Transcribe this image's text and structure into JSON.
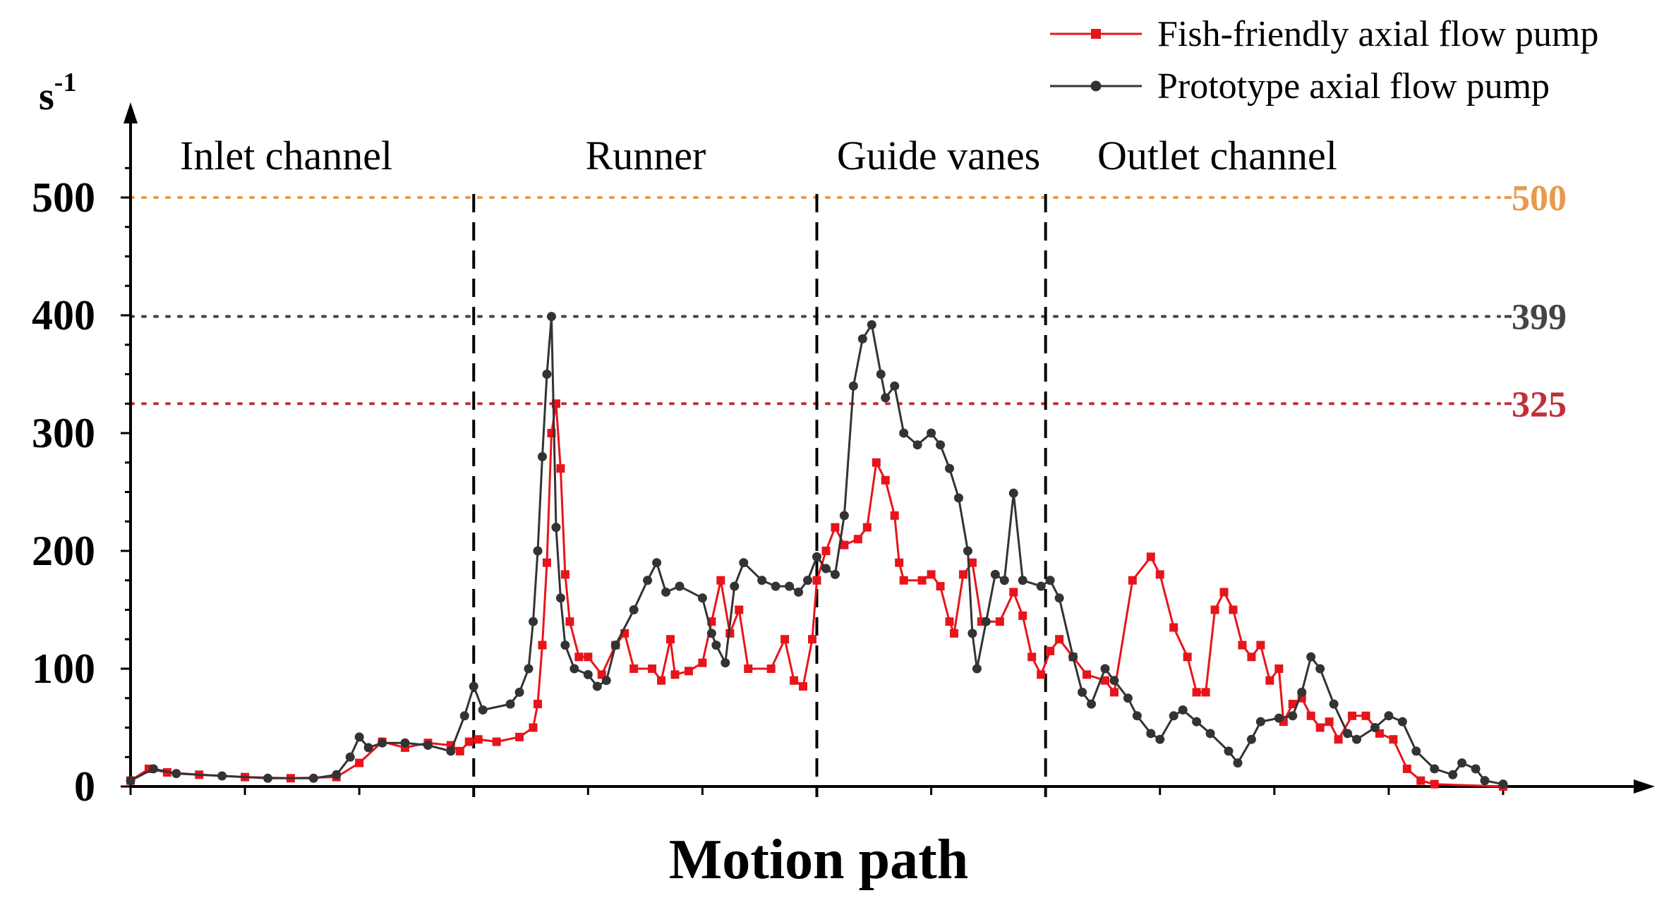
{
  "chart_data": {
    "type": "line",
    "xlabel": "Motion path",
    "ylabel_unit": "s",
    "ylabel_unit_sup": "-1",
    "ylim": [
      0,
      550
    ],
    "xlim": [
      0,
      300
    ],
    "y_ticks": [
      0,
      100,
      200,
      300,
      400,
      500
    ],
    "grid": false,
    "legend_position": "top-right",
    "regions": [
      {
        "label": "Inlet channel",
        "x_start": 0,
        "x_end": 75
      },
      {
        "label": "Runner",
        "x_start": 75,
        "x_end": 150
      },
      {
        "label": "Guide vanes",
        "x_start": 150,
        "x_end": 200
      },
      {
        "label": "Outlet channel",
        "x_start": 200,
        "x_end": 300
      }
    ],
    "reference_lines": [
      {
        "value": 500,
        "label": "500",
        "color": "#e89a4a"
      },
      {
        "value": 399,
        "label": "399",
        "color": "#444444"
      },
      {
        "value": 325,
        "label": "325",
        "color": "#c0303a"
      }
    ],
    "series": [
      {
        "name": "Fish-friendly axial flow pump",
        "color": "#e8141b",
        "points": [
          [
            0,
            5
          ],
          [
            4,
            15
          ],
          [
            8,
            12
          ],
          [
            15,
            10
          ],
          [
            25,
            8
          ],
          [
            35,
            7
          ],
          [
            45,
            8
          ],
          [
            50,
            20
          ],
          [
            55,
            38
          ],
          [
            60,
            33
          ],
          [
            65,
            37
          ],
          [
            70,
            35
          ],
          [
            72,
            30
          ],
          [
            74,
            38
          ],
          [
            76,
            40
          ],
          [
            80,
            38
          ],
          [
            85,
            42
          ],
          [
            88,
            50
          ],
          [
            89,
            70
          ],
          [
            90,
            120
          ],
          [
            91,
            190
          ],
          [
            92,
            300
          ],
          [
            93,
            325
          ],
          [
            94,
            270
          ],
          [
            95,
            180
          ],
          [
            96,
            140
          ],
          [
            98,
            110
          ],
          [
            100,
            110
          ],
          [
            103,
            95
          ],
          [
            106,
            120
          ],
          [
            108,
            130
          ],
          [
            110,
            100
          ],
          [
            114,
            100
          ],
          [
            116,
            90
          ],
          [
            118,
            125
          ],
          [
            119,
            95
          ],
          [
            122,
            98
          ],
          [
            125,
            105
          ],
          [
            127,
            140
          ],
          [
            129,
            175
          ],
          [
            131,
            130
          ],
          [
            133,
            150
          ],
          [
            135,
            100
          ],
          [
            140,
            100
          ],
          [
            143,
            125
          ],
          [
            145,
            90
          ],
          [
            147,
            85
          ],
          [
            149,
            125
          ],
          [
            150,
            175
          ],
          [
            152,
            200
          ],
          [
            154,
            220
          ],
          [
            156,
            205
          ],
          [
            159,
            210
          ],
          [
            161,
            220
          ],
          [
            163,
            275
          ],
          [
            165,
            260
          ],
          [
            167,
            230
          ],
          [
            168,
            190
          ],
          [
            169,
            175
          ],
          [
            173,
            175
          ],
          [
            175,
            180
          ],
          [
            177,
            170
          ],
          [
            179,
            140
          ],
          [
            180,
            130
          ],
          [
            182,
            180
          ],
          [
            184,
            190
          ],
          [
            186,
            140
          ],
          [
            190,
            140
          ],
          [
            193,
            165
          ],
          [
            195,
            145
          ],
          [
            197,
            110
          ],
          [
            199,
            95
          ],
          [
            201,
            115
          ],
          [
            203,
            125
          ],
          [
            206,
            110
          ],
          [
            209,
            95
          ],
          [
            213,
            90
          ],
          [
            215,
            80
          ],
          [
            219,
            175
          ],
          [
            223,
            195
          ],
          [
            225,
            180
          ],
          [
            228,
            135
          ],
          [
            231,
            110
          ],
          [
            233,
            80
          ],
          [
            235,
            80
          ],
          [
            237,
            150
          ],
          [
            239,
            165
          ],
          [
            241,
            150
          ],
          [
            243,
            120
          ],
          [
            245,
            110
          ],
          [
            247,
            120
          ],
          [
            249,
            90
          ],
          [
            251,
            100
          ],
          [
            252,
            55
          ],
          [
            254,
            70
          ],
          [
            256,
            75
          ],
          [
            258,
            60
          ],
          [
            260,
            50
          ],
          [
            262,
            55
          ],
          [
            264,
            40
          ],
          [
            267,
            60
          ],
          [
            270,
            60
          ],
          [
            273,
            45
          ],
          [
            276,
            40
          ],
          [
            279,
            15
          ],
          [
            282,
            5
          ],
          [
            285,
            2
          ],
          [
            300,
            0
          ]
        ]
      },
      {
        "name": "Prototype axial flow pump",
        "color": "#333333",
        "points": [
          [
            0,
            5
          ],
          [
            5,
            15
          ],
          [
            10,
            11
          ],
          [
            20,
            9
          ],
          [
            30,
            7
          ],
          [
            40,
            7
          ],
          [
            45,
            10
          ],
          [
            48,
            25
          ],
          [
            50,
            42
          ],
          [
            52,
            33
          ],
          [
            55,
            37
          ],
          [
            60,
            37
          ],
          [
            65,
            35
          ],
          [
            70,
            30
          ],
          [
            73,
            60
          ],
          [
            75,
            85
          ],
          [
            77,
            65
          ],
          [
            83,
            70
          ],
          [
            85,
            80
          ],
          [
            87,
            100
          ],
          [
            88,
            140
          ],
          [
            89,
            200
          ],
          [
            90,
            280
          ],
          [
            91,
            350
          ],
          [
            92,
            399
          ],
          [
            93,
            220
          ],
          [
            94,
            160
          ],
          [
            95,
            120
          ],
          [
            97,
            100
          ],
          [
            100,
            95
          ],
          [
            102,
            85
          ],
          [
            104,
            90
          ],
          [
            106,
            120
          ],
          [
            110,
            150
          ],
          [
            113,
            175
          ],
          [
            115,
            190
          ],
          [
            117,
            165
          ],
          [
            120,
            170
          ],
          [
            125,
            160
          ],
          [
            127,
            130
          ],
          [
            128,
            120
          ],
          [
            130,
            105
          ],
          [
            132,
            170
          ],
          [
            134,
            190
          ],
          [
            138,
            175
          ],
          [
            141,
            170
          ],
          [
            144,
            170
          ],
          [
            146,
            165
          ],
          [
            148,
            175
          ],
          [
            150,
            195
          ],
          [
            152,
            185
          ],
          [
            154,
            180
          ],
          [
            156,
            230
          ],
          [
            158,
            340
          ],
          [
            160,
            380
          ],
          [
            162,
            392
          ],
          [
            164,
            350
          ],
          [
            165,
            330
          ],
          [
            167,
            340
          ],
          [
            169,
            300
          ],
          [
            172,
            290
          ],
          [
            175,
            300
          ],
          [
            177,
            290
          ],
          [
            179,
            270
          ],
          [
            181,
            245
          ],
          [
            183,
            200
          ],
          [
            184,
            130
          ],
          [
            185,
            100
          ],
          [
            187,
            140
          ],
          [
            189,
            180
          ],
          [
            191,
            175
          ],
          [
            193,
            249
          ],
          [
            195,
            175
          ],
          [
            199,
            170
          ],
          [
            201,
            175
          ],
          [
            203,
            160
          ],
          [
            206,
            110
          ],
          [
            208,
            80
          ],
          [
            210,
            70
          ],
          [
            213,
            100
          ],
          [
            215,
            90
          ],
          [
            218,
            75
          ],
          [
            220,
            60
          ],
          [
            223,
            45
          ],
          [
            225,
            40
          ],
          [
            228,
            60
          ],
          [
            230,
            65
          ],
          [
            233,
            55
          ],
          [
            236,
            45
          ],
          [
            240,
            30
          ],
          [
            242,
            20
          ],
          [
            245,
            40
          ],
          [
            247,
            55
          ],
          [
            251,
            58
          ],
          [
            254,
            60
          ],
          [
            256,
            80
          ],
          [
            258,
            110
          ],
          [
            260,
            100
          ],
          [
            263,
            70
          ],
          [
            266,
            45
          ],
          [
            268,
            40
          ],
          [
            272,
            50
          ],
          [
            275,
            60
          ],
          [
            278,
            55
          ],
          [
            281,
            30
          ],
          [
            285,
            15
          ],
          [
            289,
            10
          ],
          [
            291,
            20
          ],
          [
            294,
            15
          ],
          [
            296,
            5
          ],
          [
            300,
            2
          ]
        ]
      }
    ]
  }
}
